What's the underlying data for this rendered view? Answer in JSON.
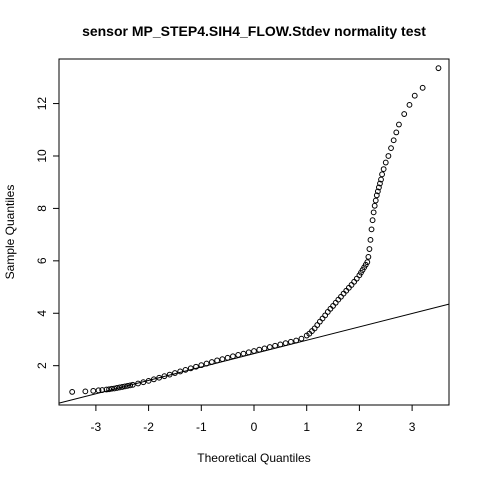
{
  "chart_data": {
    "type": "scatter",
    "title": "sensor MP_STEP4.SIH4_FLOW.Stdev normality test",
    "xlabel": "Theoretical Quantiles",
    "ylabel": "Sample Quantiles",
    "xlim": [
      -3.7,
      3.7
    ],
    "ylim": [
      0.5,
      13.7
    ],
    "x_ticks": [
      -3,
      -2,
      -1,
      0,
      1,
      2,
      3
    ],
    "y_ticks": [
      2,
      4,
      6,
      8,
      10,
      12
    ],
    "x_tick_labels": [
      "-3",
      "-2",
      "-1",
      "0",
      "1",
      "2",
      "3"
    ],
    "y_tick_labels": [
      "2",
      "4",
      "6",
      "8",
      "10",
      "12"
    ],
    "grid": false,
    "legend": "none",
    "reference_line": {
      "x": [
        -3.7,
        3.7
      ],
      "y": [
        0.57,
        4.35
      ]
    },
    "points": {
      "x": [
        -3.45,
        -3.2,
        -3.05,
        -2.95,
        -2.88,
        -2.8,
        -2.75,
        -2.7,
        -2.65,
        -2.6,
        -2.55,
        -2.5,
        -2.45,
        -2.4,
        -2.35,
        -2.3,
        -2.2,
        -2.1,
        -2.0,
        -1.9,
        -1.8,
        -1.7,
        -1.6,
        -1.5,
        -1.4,
        -1.3,
        -1.2,
        -1.1,
        -1.0,
        -0.9,
        -0.8,
        -0.7,
        -0.6,
        -0.5,
        -0.4,
        -0.3,
        -0.2,
        -0.1,
        0.0,
        0.1,
        0.2,
        0.3,
        0.4,
        0.5,
        0.6,
        0.7,
        0.8,
        0.9,
        1.0,
        1.05,
        1.1,
        1.15,
        1.2,
        1.25,
        1.3,
        1.35,
        1.4,
        1.45,
        1.5,
        1.55,
        1.6,
        1.65,
        1.7,
        1.75,
        1.8,
        1.85,
        1.9,
        1.95,
        2.0,
        2.03,
        2.06,
        2.09,
        2.12,
        2.15,
        2.17,
        2.19,
        2.21,
        2.23,
        2.25,
        2.27,
        2.29,
        2.31,
        2.33,
        2.35,
        2.37,
        2.39,
        2.41,
        2.43,
        2.46,
        2.5,
        2.55,
        2.6,
        2.65,
        2.7,
        2.75,
        2.85,
        2.95,
        3.05,
        3.2,
        3.5
      ],
      "y": [
        1.0,
        1.02,
        1.04,
        1.06,
        1.07,
        1.09,
        1.1,
        1.12,
        1.13,
        1.15,
        1.17,
        1.19,
        1.21,
        1.23,
        1.25,
        1.27,
        1.32,
        1.37,
        1.42,
        1.48,
        1.54,
        1.6,
        1.66,
        1.72,
        1.78,
        1.84,
        1.9,
        1.96,
        2.02,
        2.08,
        2.14,
        2.2,
        2.25,
        2.3,
        2.36,
        2.41,
        2.46,
        2.51,
        2.56,
        2.61,
        2.66,
        2.71,
        2.76,
        2.81,
        2.86,
        2.91,
        2.96,
        3.03,
        3.15,
        3.22,
        3.32,
        3.42,
        3.55,
        3.68,
        3.8,
        3.92,
        4.05,
        4.17,
        4.28,
        4.4,
        4.52,
        4.63,
        4.75,
        4.86,
        4.97,
        5.08,
        5.2,
        5.32,
        5.45,
        5.55,
        5.65,
        5.75,
        5.85,
        5.95,
        6.15,
        6.45,
        6.8,
        7.2,
        7.55,
        7.85,
        8.1,
        8.3,
        8.5,
        8.65,
        8.8,
        8.95,
        9.1,
        9.3,
        9.5,
        9.75,
        10.0,
        10.3,
        10.6,
        10.9,
        11.2,
        11.6,
        11.95,
        12.3,
        12.6,
        13.35
      ]
    }
  }
}
